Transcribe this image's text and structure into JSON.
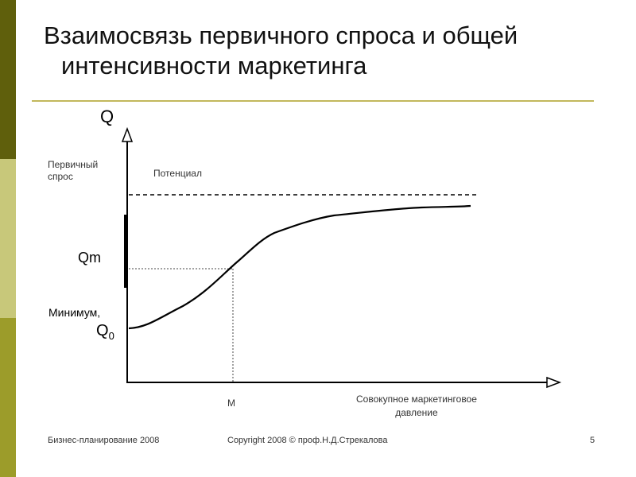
{
  "slide": {
    "title_line1": "Взаимосвязь первичного спроса и общей",
    "title_line2": "интенсивности маркетинга",
    "colors": {
      "bar_top": "#5f5f0c",
      "bar_mid": "#c8c87a",
      "bar_bottom": "#9c9c2a",
      "rule": "#c2b85c"
    }
  },
  "diagram": {
    "y_axis_symbol": "Q",
    "y_axis_label": "Первичный спрос",
    "potential_label": "Потенциал",
    "qm_label": "Qm",
    "minimum_label": "Минимум,",
    "q0_base": "Q",
    "q0_sub": "0",
    "m_label": "M",
    "x_axis_label_line1": "Совокупное маркетинговое",
    "x_axis_label_line2": "давление"
  },
  "footer": {
    "left": "Бизнес-планирование  2008",
    "center": "Copyright 2008 © проф.Н.Д.Стрекалова",
    "page": "5"
  }
}
